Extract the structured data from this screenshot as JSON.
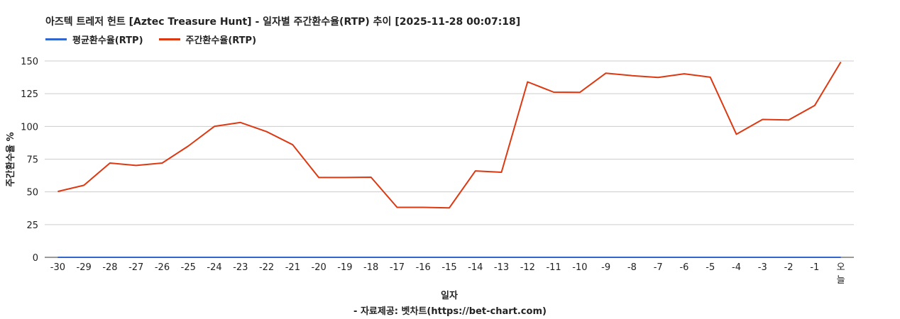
{
  "title": "아즈텍 트레저 헌트 [Aztec Treasure Hunt] - 일자별 주간환수율(RTP) 추이 [2025-11-28 00:07:18]",
  "footer": "- 자료제공: 벳차트(https://bet-chart.com)",
  "colors": {
    "avg": "#3366cc",
    "weekly": "#dc3912",
    "grid": "#cccccc",
    "axis": "#333333"
  },
  "chart_data": {
    "type": "line",
    "xlabel": "일자",
    "ylabel": "주간환수율 %",
    "ylim": [
      0,
      150
    ],
    "yticks": [
      0,
      25,
      50,
      75,
      100,
      125,
      150
    ],
    "grid": true,
    "legend_position": "top-left",
    "categories": [
      "-30",
      "-29",
      "-28",
      "-27",
      "-26",
      "-25",
      "-24",
      "-23",
      "-22",
      "-21",
      "-20",
      "-19",
      "-18",
      "-17",
      "-16",
      "-15",
      "-14",
      "-13",
      "-12",
      "-11",
      "-10",
      "-9",
      "-8",
      "-7",
      "-6",
      "-5",
      "-4",
      "-3",
      "-2",
      "-1",
      "오늘"
    ],
    "series": [
      {
        "name": "평균환수율(RTP)",
        "color": "#3366cc",
        "values": [
          0,
          0,
          0,
          0,
          0,
          0,
          0,
          0,
          0,
          0,
          0,
          0,
          0,
          0,
          0,
          0,
          0,
          0,
          0,
          0,
          0,
          0,
          0,
          0,
          0,
          0,
          0,
          0,
          0,
          0,
          0
        ]
      },
      {
        "name": "주간환수율(RTP)",
        "color": "#dc3912",
        "values": [
          50.3,
          55,
          72,
          70.2,
          72,
          85,
          100,
          103,
          96,
          86,
          61,
          61,
          61.2,
          38.2,
          38.2,
          37.8,
          66,
          65,
          134,
          126.2,
          126,
          140.7,
          138.8,
          137.4,
          140.2,
          137.6,
          94,
          105.3,
          104.9,
          116,
          149.2
        ]
      }
    ]
  }
}
